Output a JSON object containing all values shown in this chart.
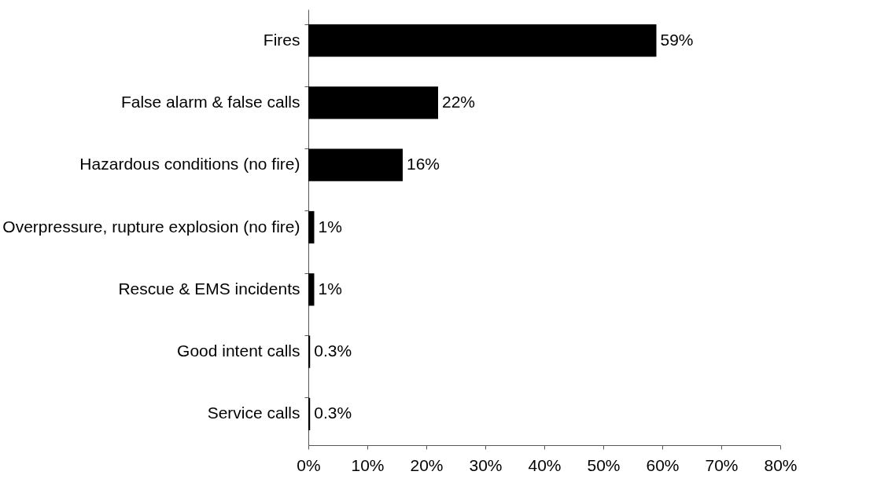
{
  "chart_data": {
    "type": "bar",
    "orientation": "horizontal",
    "categories": [
      "Fires",
      "False alarm & false calls",
      "Hazardous conditions (no fire)",
      "Overpressure, rupture explosion (no fire)",
      "Rescue & EMS incidents",
      "Good intent calls",
      "Service calls"
    ],
    "values": [
      59,
      22,
      16,
      1,
      1,
      0.3,
      0.3
    ],
    "value_labels": [
      "59%",
      "22%",
      "16%",
      "1%",
      "1%",
      "0.3%",
      "0.3%"
    ],
    "color": "#000000",
    "xlim": [
      0,
      80
    ],
    "xticks": [
      {
        "value": 0,
        "label": "0%"
      },
      {
        "value": 10,
        "label": "10%"
      },
      {
        "value": 20,
        "label": "20%"
      },
      {
        "value": 30,
        "label": "30%"
      },
      {
        "value": 40,
        "label": "40%"
      },
      {
        "value": 50,
        "label": "50%"
      },
      {
        "value": 60,
        "label": "60%"
      },
      {
        "value": 70,
        "label": "70%"
      },
      {
        "value": 80,
        "label": "80%"
      }
    ],
    "grid": false
  }
}
